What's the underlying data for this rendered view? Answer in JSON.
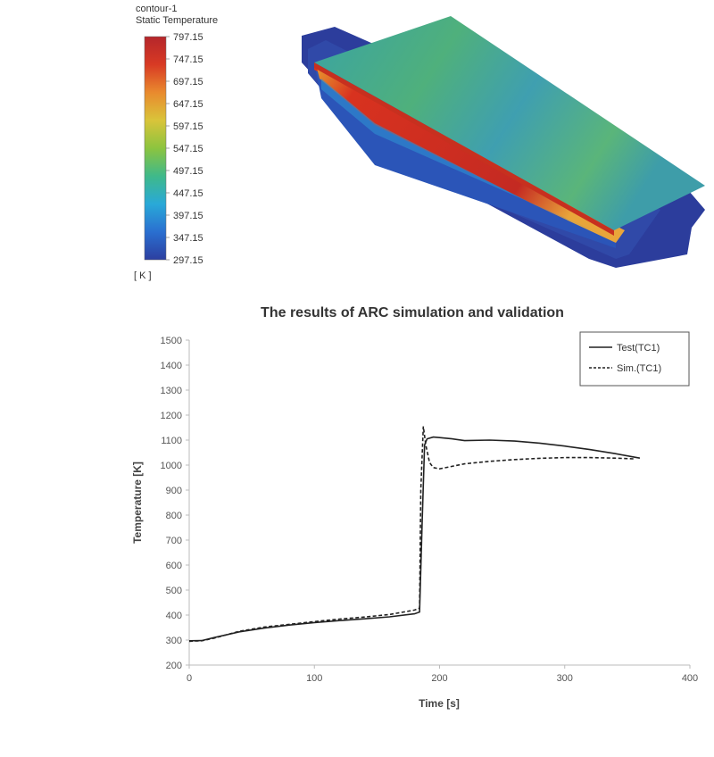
{
  "contour": {
    "name": "contour-1",
    "variable": "Static Temperature",
    "unit_label": "[ K ]",
    "ticks": [
      "797.15",
      "747.15",
      "697.15",
      "647.15",
      "597.15",
      "547.15",
      "497.15",
      "447.15",
      "397.15",
      "347.15",
      "297.15"
    ],
    "colormap": [
      "#2c3fa0",
      "#2a6fd0",
      "#29a9d8",
      "#3fb98a",
      "#8cc43f",
      "#d9c43a",
      "#e98a2e",
      "#d83a24",
      "#b5262b"
    ]
  },
  "chart_data": {
    "type": "line",
    "title": "The results of ARC simulation and validation",
    "xlabel": "Time [s]",
    "ylabel": "Temperature [K]",
    "xlim": [
      0,
      400
    ],
    "ylim": [
      200,
      1500
    ],
    "xticks": [
      0,
      100,
      200,
      300,
      400
    ],
    "yticks": [
      200,
      300,
      400,
      500,
      600,
      700,
      800,
      900,
      1000,
      1100,
      1200,
      1300,
      1400,
      1500
    ],
    "grid": false,
    "legend": "top-right",
    "series": [
      {
        "name": "Test(TC1)",
        "style": "solid",
        "x": [
          0,
          10,
          20,
          40,
          60,
          80,
          100,
          120,
          140,
          160,
          180,
          184,
          186,
          188,
          190,
          195,
          200,
          210,
          220,
          240,
          260,
          280,
          300,
          320,
          340,
          360
        ],
        "y": [
          297,
          298,
          310,
          333,
          348,
          360,
          370,
          378,
          385,
          393,
          405,
          412,
          760,
          1080,
          1105,
          1112,
          1110,
          1105,
          1098,
          1100,
          1096,
          1088,
          1076,
          1062,
          1046,
          1028
        ]
      },
      {
        "name": "Sim.(TC1)",
        "style": "dashed",
        "x": [
          0,
          10,
          20,
          40,
          60,
          80,
          100,
          120,
          140,
          160,
          180,
          184,
          185,
          187,
          189,
          192,
          195,
          200,
          210,
          220,
          240,
          260,
          280,
          300,
          320,
          340,
          355
        ],
        "y": [
          295,
          297,
          308,
          335,
          352,
          363,
          374,
          384,
          392,
          402,
          420,
          428,
          900,
          1155,
          1080,
          1010,
          990,
          985,
          995,
          1005,
          1015,
          1022,
          1027,
          1030,
          1030,
          1028,
          1025
        ]
      }
    ]
  }
}
